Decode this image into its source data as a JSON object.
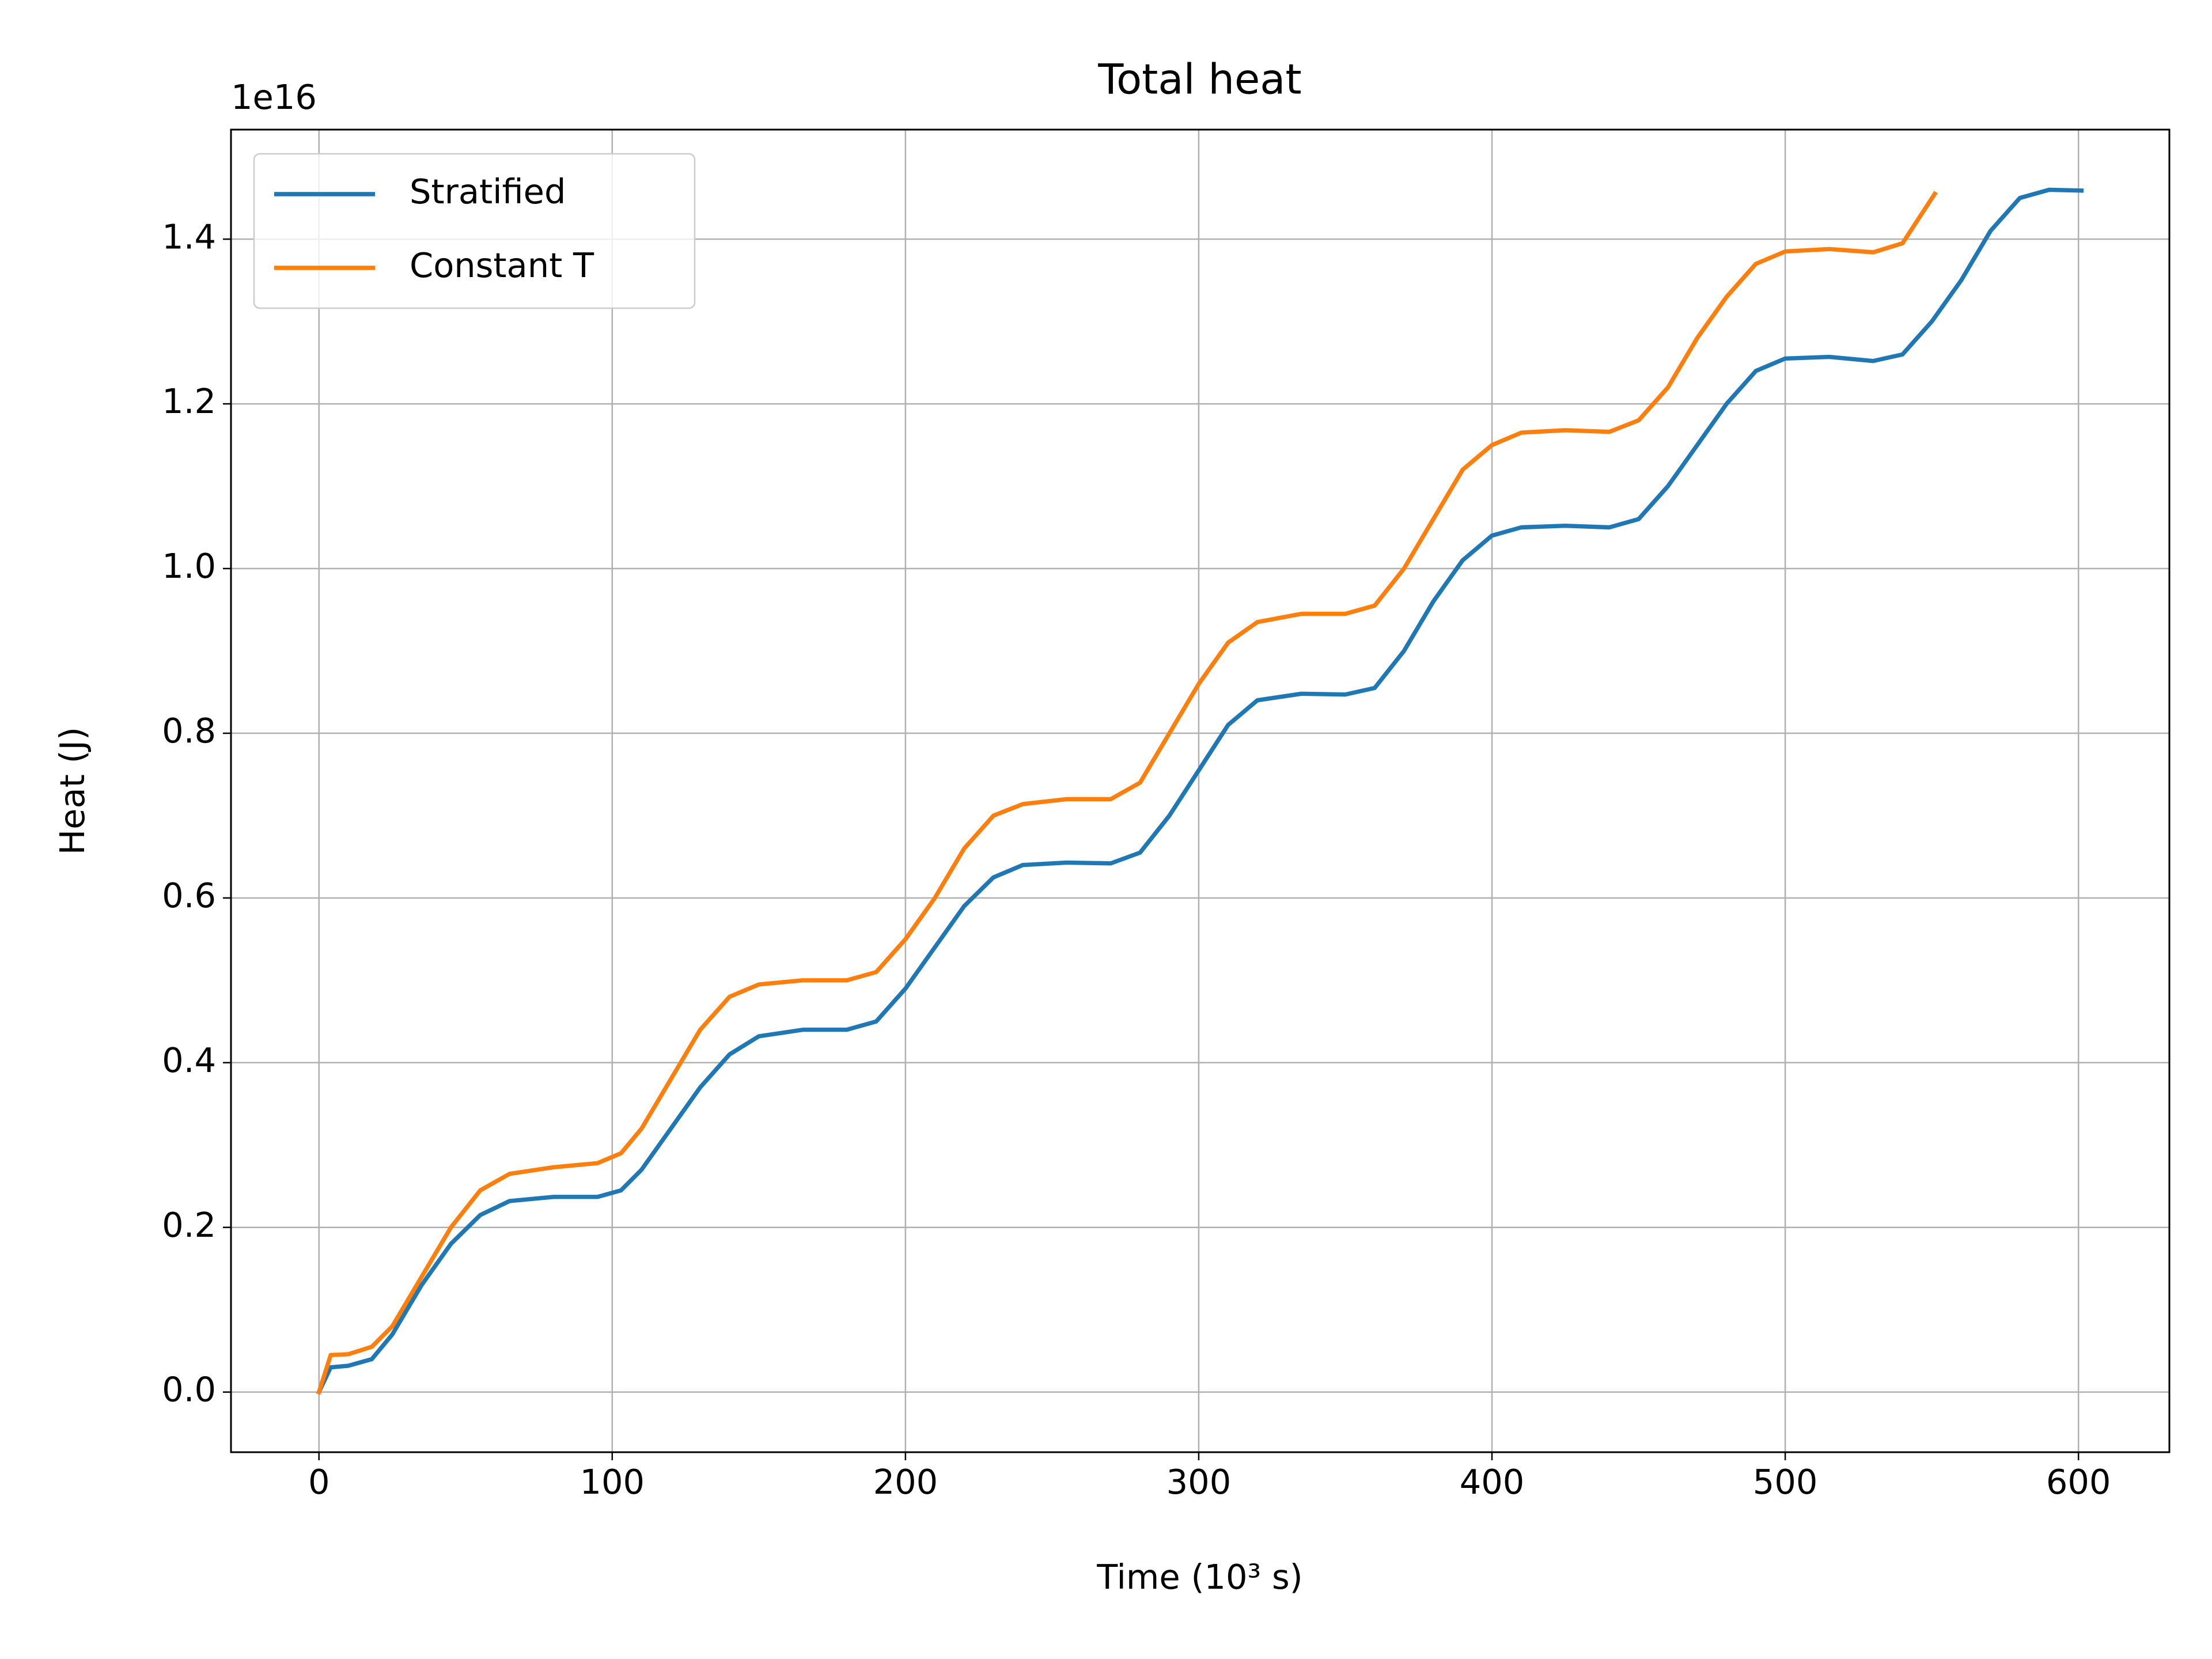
{
  "chart_data": {
    "type": "line",
    "title": "Total heat",
    "xlabel": "Time (10³ s)",
    "ylabel": "Heat (J)",
    "y_offset_label": "1e16",
    "series": [
      {
        "name": "Stratified",
        "color": "#1f77b4",
        "x": [
          0,
          4,
          10,
          18,
          25,
          35,
          45,
          55,
          65,
          80,
          95,
          103,
          110,
          120,
          130,
          140,
          150,
          165,
          180,
          190,
          200,
          210,
          220,
          230,
          240,
          255,
          270,
          280,
          290,
          300,
          310,
          320,
          335,
          350,
          360,
          370,
          380,
          390,
          400,
          410,
          425,
          440,
          450,
          460,
          470,
          480,
          490,
          500,
          515,
          530,
          540,
          550,
          560,
          570,
          580,
          590,
          601
        ],
        "values": [
          0,
          0.03,
          0.032,
          0.04,
          0.07,
          0.13,
          0.18,
          0.215,
          0.232,
          0.237,
          0.237,
          0.245,
          0.27,
          0.32,
          0.37,
          0.41,
          0.432,
          0.44,
          0.44,
          0.45,
          0.49,
          0.54,
          0.59,
          0.625,
          0.64,
          0.643,
          0.642,
          0.655,
          0.7,
          0.755,
          0.81,
          0.84,
          0.848,
          0.847,
          0.855,
          0.9,
          0.96,
          1.01,
          1.04,
          1.05,
          1.052,
          1.05,
          1.06,
          1.1,
          1.15,
          1.2,
          1.24,
          1.255,
          1.257,
          1.252,
          1.26,
          1.3,
          1.35,
          1.41,
          1.45,
          1.46,
          1.459
        ]
      },
      {
        "name": "Constant T",
        "color": "#ff7f0e",
        "x": [
          0,
          4,
          10,
          18,
          25,
          35,
          45,
          55,
          65,
          80,
          95,
          103,
          110,
          120,
          130,
          140,
          150,
          165,
          180,
          190,
          200,
          210,
          220,
          230,
          240,
          255,
          270,
          280,
          290,
          300,
          310,
          320,
          335,
          350,
          360,
          370,
          380,
          390,
          400,
          410,
          425,
          440,
          450,
          460,
          470,
          480,
          490,
          500,
          515,
          530,
          540,
          551
        ],
        "values": [
          0,
          0.045,
          0.046,
          0.055,
          0.08,
          0.14,
          0.2,
          0.245,
          0.265,
          0.273,
          0.278,
          0.29,
          0.32,
          0.38,
          0.44,
          0.48,
          0.495,
          0.5,
          0.5,
          0.51,
          0.55,
          0.6,
          0.66,
          0.7,
          0.714,
          0.72,
          0.72,
          0.74,
          0.8,
          0.86,
          0.91,
          0.935,
          0.945,
          0.945,
          0.955,
          1.0,
          1.06,
          1.12,
          1.15,
          1.165,
          1.168,
          1.166,
          1.18,
          1.22,
          1.28,
          1.33,
          1.37,
          1.385,
          1.388,
          1.384,
          1.395,
          1.455
        ]
      }
    ],
    "xlim": [
      -30,
      631
    ],
    "xticks": [
      0,
      100,
      200,
      300,
      400,
      500,
      600
    ],
    "ylim": [
      -0.073,
      1.533
    ],
    "yticks": [
      {
        "value": 0,
        "label": "0.0"
      },
      0.2,
      0.4,
      0.6,
      0.8,
      {
        "value": 1,
        "label": "1.0"
      },
      1.2,
      1.4
    ],
    "grid": true,
    "legend": "upper left"
  }
}
